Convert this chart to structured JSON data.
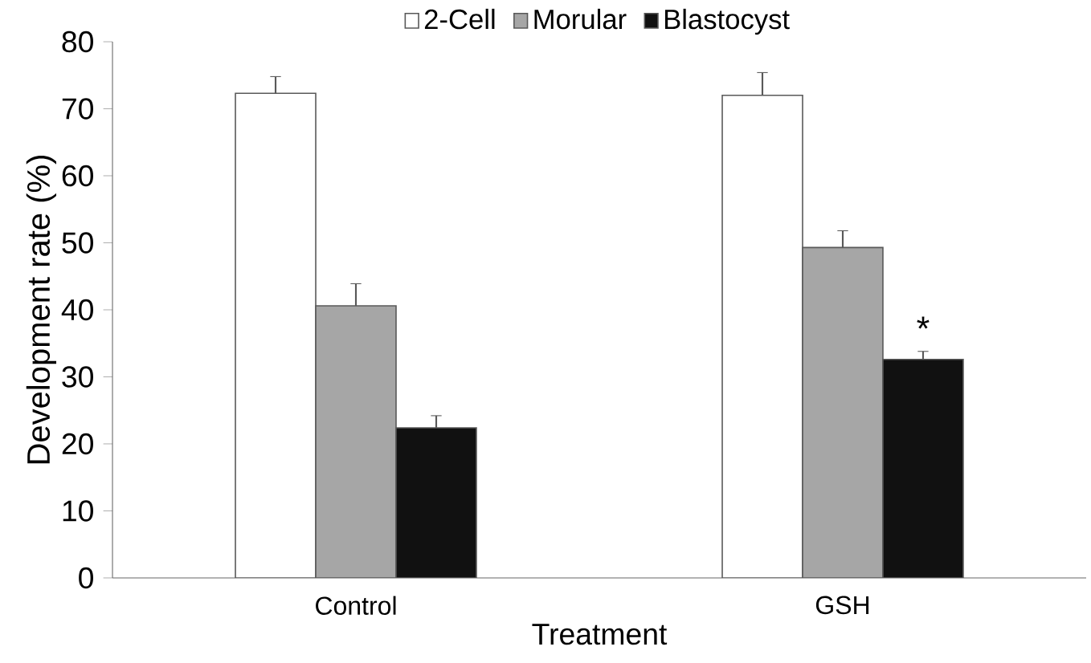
{
  "chart_data": {
    "type": "bar",
    "xlabel": "Treatment",
    "ylabel": "Development rate (%)",
    "categories": [
      "Control",
      "GSH"
    ],
    "series": [
      {
        "name": "2-Cell",
        "color": "#ffffff",
        "values": [
          72.3,
          72.0
        ],
        "errors": [
          2.5,
          3.4
        ]
      },
      {
        "name": "Morular",
        "color": "#a6a6a6",
        "values": [
          40.6,
          49.3
        ],
        "errors": [
          3.3,
          2.5
        ]
      },
      {
        "name": "Blastocyst",
        "color": "#111111",
        "values": [
          22.4,
          32.6
        ],
        "errors": [
          1.8,
          1.2
        ]
      }
    ],
    "ylim": [
      0,
      80
    ],
    "yticks": [
      0,
      10,
      20,
      30,
      40,
      50,
      60,
      70,
      80
    ],
    "legend": "top",
    "annotations": [
      "*"
    ]
  }
}
